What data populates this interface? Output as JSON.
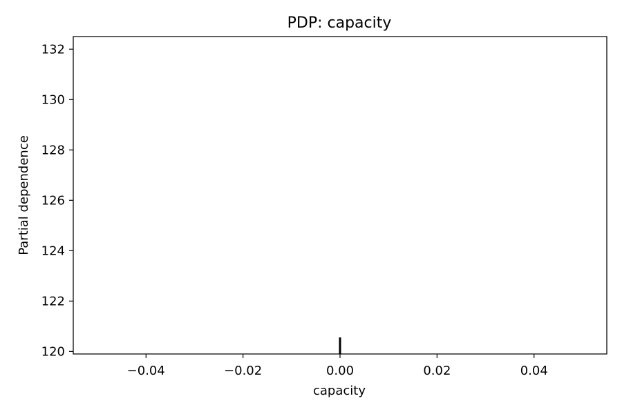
{
  "chart_data": {
    "type": "line",
    "title": "PDP: capacity",
    "xlabel": "capacity",
    "ylabel": "Partial dependence",
    "xlim": [
      -0.055,
      0.055
    ],
    "ylim": [
      119.9,
      132.5
    ],
    "x_ticks": [
      -0.04,
      -0.02,
      0.0,
      0.02,
      0.04
    ],
    "x_tick_labels": [
      "−0.04",
      "−0.02",
      "0.00",
      "0.02",
      "0.04"
    ],
    "y_ticks": [
      120,
      122,
      124,
      126,
      128,
      130,
      132
    ],
    "y_tick_labels": [
      "120",
      "122",
      "124",
      "126",
      "128",
      "130",
      "132"
    ],
    "series": [
      {
        "x": [
          0.0
        ],
        "y": [
          120.0
        ]
      }
    ],
    "rug": [
      0.0
    ],
    "grid": false,
    "colors": {
      "rug": "#000000",
      "axes": "#000000",
      "background": "#ffffff"
    }
  }
}
